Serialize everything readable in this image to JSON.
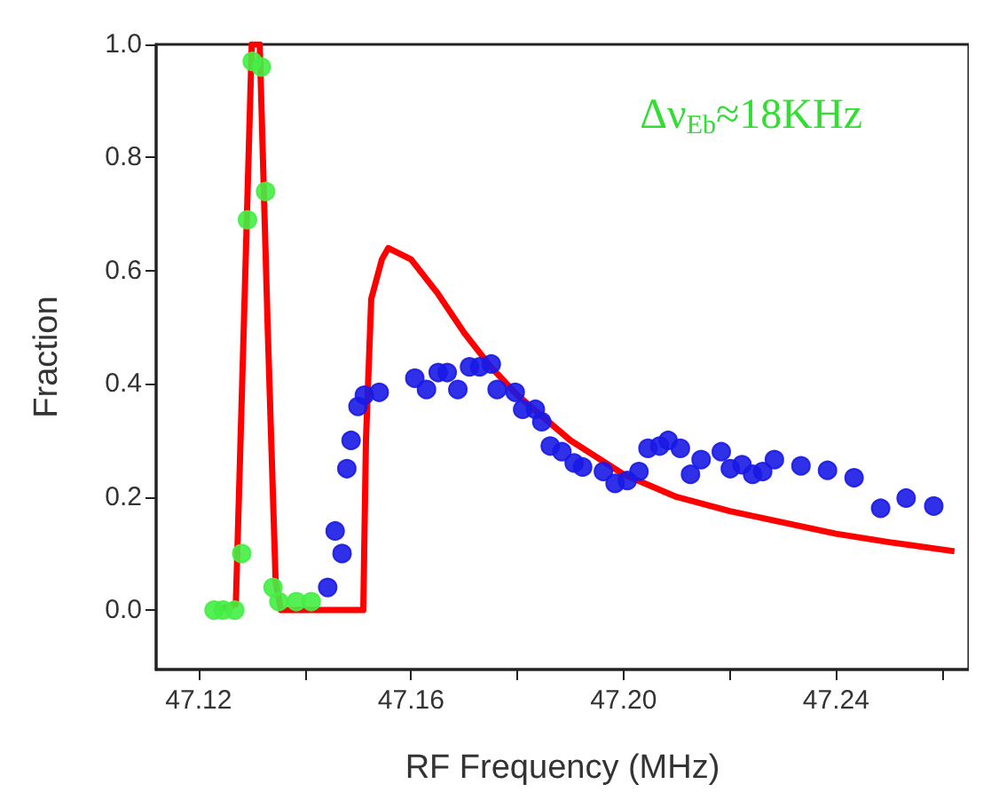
{
  "chart_data": {
    "type": "scatter",
    "xlabel": "RF Frequency (MHz)",
    "ylabel": "Fraction",
    "annotations": [
      "Δν$_{Eb}$≈18KHz"
    ],
    "xlim": [
      47.112,
      47.265
    ],
    "ylim": [
      -0.105,
      1.0
    ],
    "xticks": [
      47.12,
      {
        "value": 47.14,
        "label": null
      },
      47.16,
      {
        "value": 47.18,
        "label": null
      },
      {
        "value": 47.2,
        "label": "47.20"
      },
      {
        "value": 47.22,
        "label": null
      },
      47.24,
      {
        "value": 47.26,
        "label": null
      }
    ],
    "yticks": [
      {
        "value": 0,
        "label": "0.0"
      },
      0.2,
      0.4,
      0.6,
      0.8,
      {
        "value": 1,
        "label": "1.0"
      }
    ],
    "grid": false,
    "marker": "circle",
    "series": [
      {
        "color": "#44ee44",
        "x": [
          47.1229,
          47.1246,
          47.1268,
          47.1281,
          47.1292,
          47.1301,
          47.1318,
          47.1326,
          47.134,
          47.1351,
          47.1384,
          47.1412
        ],
        "values": [
          0.0,
          0.0,
          0.0,
          0.1,
          0.69,
          0.97,
          0.96,
          0.74,
          0.04,
          0.015,
          0.015,
          0.015
        ]
      },
      {
        "color": "#1a1ae6",
        "x": [
          47.1443,
          47.1457,
          47.147,
          47.1479,
          47.1487,
          47.15,
          47.1512,
          47.154,
          47.1607,
          47.1629,
          47.1651,
          47.1668,
          47.1688,
          47.171,
          47.1729,
          47.1751,
          47.1762,
          47.1796,
          47.181,
          47.1834,
          47.1846,
          47.1862,
          47.1884,
          47.1907,
          47.1923,
          47.1962,
          47.1984,
          47.2007,
          47.2029,
          47.2046,
          47.2068,
          47.2084,
          47.2107,
          47.2126,
          47.2146,
          47.2184,
          47.2201,
          47.2223,
          47.2243,
          47.2262,
          47.2284,
          47.2334,
          47.2384,
          47.2434,
          47.2484,
          47.2532,
          47.2584
        ],
        "values": [
          0.04,
          0.14,
          0.1,
          0.25,
          0.3,
          0.36,
          0.38,
          0.385,
          0.41,
          0.39,
          0.42,
          0.42,
          0.39,
          0.43,
          0.43,
          0.435,
          0.39,
          0.385,
          0.355,
          0.355,
          0.333,
          0.29,
          0.28,
          0.26,
          0.253,
          0.245,
          0.224,
          0.229,
          0.245,
          0.286,
          0.29,
          0.3,
          0.286,
          0.24,
          0.266,
          0.28,
          0.25,
          0.257,
          0.24,
          0.245,
          0.266,
          0.255,
          0.247,
          0.234,
          0.18,
          0.198,
          0.184
        ]
      },
      {
        "type": "line",
        "color": "#ff0000",
        "marker": "none",
        "x": [
          47.1235,
          47.127,
          47.1285,
          47.13,
          47.1315,
          47.133,
          47.1345,
          47.1355,
          47.151,
          47.1515,
          47.1525,
          47.1545,
          47.1557,
          47.16,
          47.165,
          47.17,
          47.175,
          47.18,
          47.19,
          47.2,
          47.21,
          47.22,
          47.23,
          47.24,
          47.25,
          47.2623
        ],
        "values": [
          0,
          0.01,
          0.5,
          1.0,
          1.0,
          0.5,
          0.05,
          0,
          0,
          0.3,
          0.55,
          0.62,
          0.64,
          0.62,
          0.56,
          0.49,
          0.43,
          0.38,
          0.3,
          0.24,
          0.2,
          0.175,
          0.155,
          0.135,
          0.12,
          0.104
        ]
      }
    ]
  }
}
